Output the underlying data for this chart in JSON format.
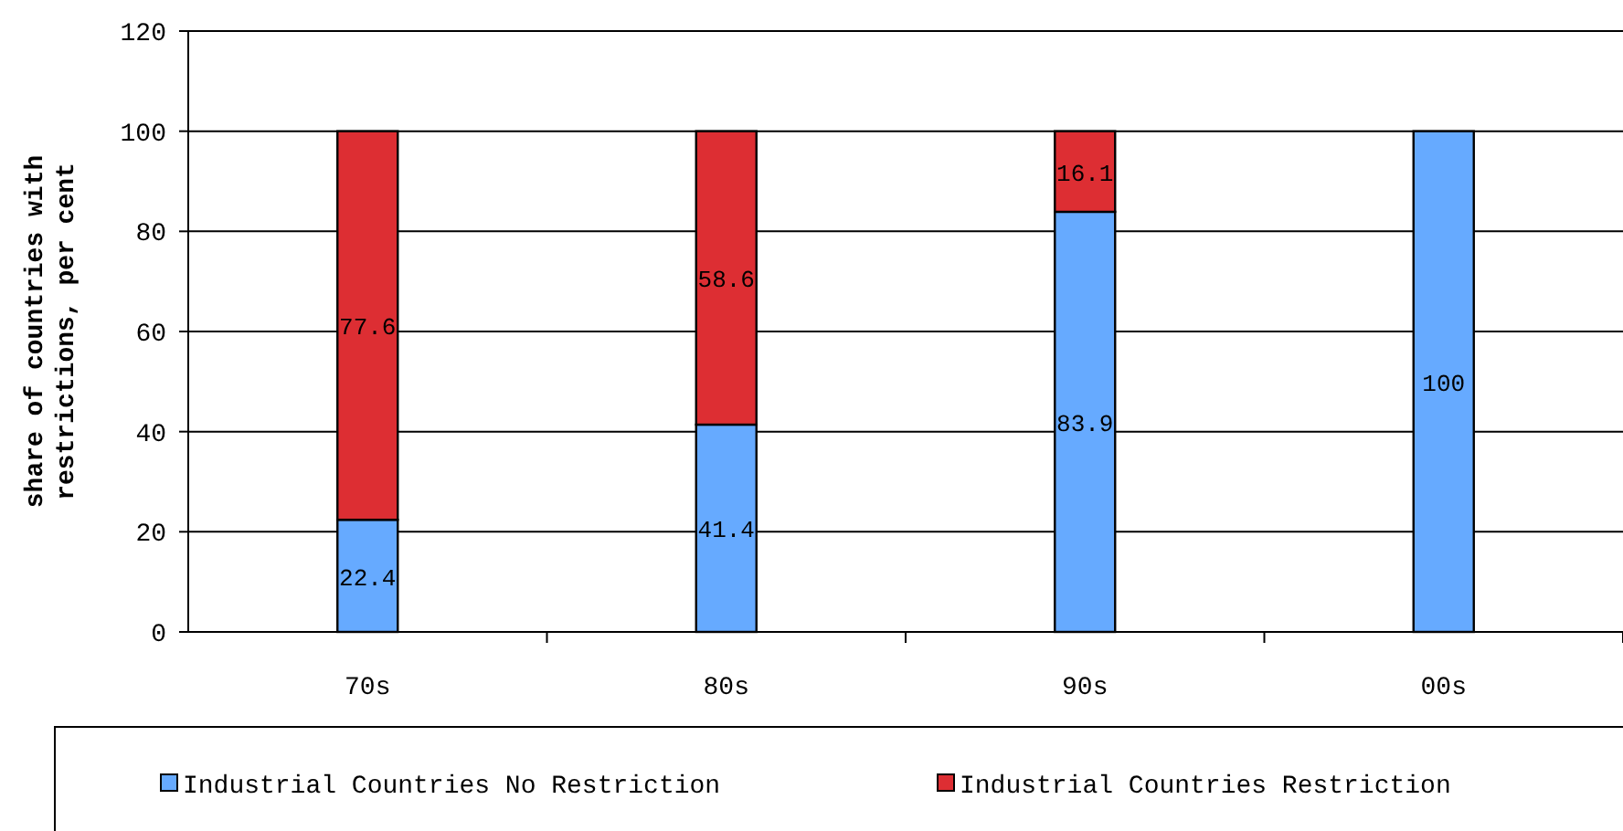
{
  "chart_data": {
    "type": "bar",
    "stacked": true,
    "ylabel": "share of countries with restrictions, per cent",
    "categories": [
      "70s",
      "80s",
      "90s",
      "00s"
    ],
    "series": [
      {
        "name": "Industrial Countries No Restriction",
        "color": "#66aaff",
        "values": [
          22.4,
          41.4,
          83.9,
          100
        ],
        "value_labels": [
          "22.4",
          "41.4",
          "83.9",
          "100"
        ]
      },
      {
        "name": "Industrial Countries Restriction",
        "color": "#dd2e33",
        "values": [
          77.6,
          58.6,
          16.1,
          0
        ],
        "value_labels": [
          "77.6",
          "58.6",
          "16.1",
          null
        ]
      }
    ],
    "ylim": [
      0,
      120
    ],
    "yticks": [
      0,
      20,
      40,
      60,
      80,
      100,
      120
    ],
    "grid": "y",
    "legend": "bottom"
  }
}
